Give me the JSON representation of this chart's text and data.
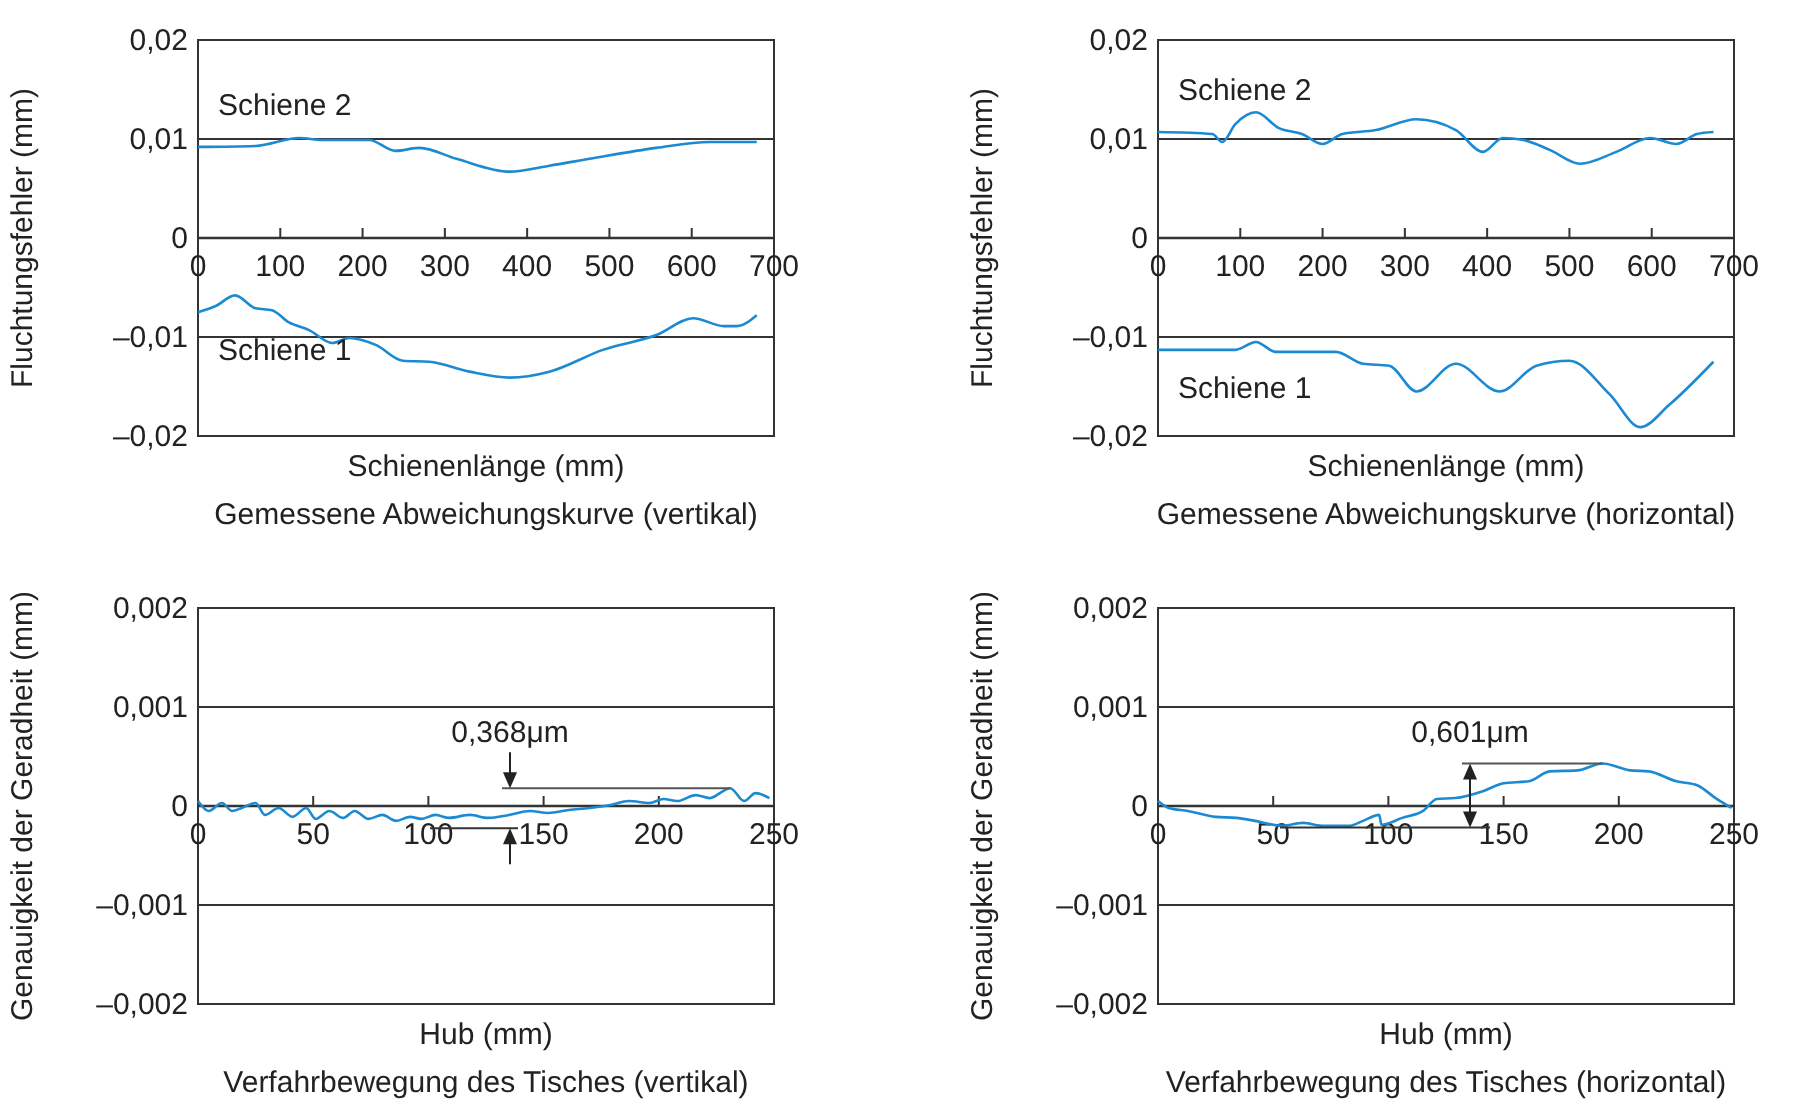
{
  "chart_data": [
    {
      "type": "line",
      "title": "Gemessene Abweichungskurve (vertikal)",
      "xlabel": "Schienenlänge (mm)",
      "ylabel": "Fluchtungsfehler (mm)",
      "xlim": [
        0,
        700
      ],
      "xticks": [
        0,
        100,
        200,
        300,
        400,
        500,
        600,
        700
      ],
      "ylim": [
        -0.02,
        0.02
      ],
      "yticks": [
        {
          "value": -0.02,
          "label": "–0,02"
        },
        {
          "value": -0.01,
          "label": "–0,01"
        },
        {
          "value": 0,
          "label": "0"
        },
        {
          "value": 0.01,
          "label": "0,01"
        },
        {
          "value": 0.02,
          "label": "0,02"
        }
      ],
      "grid": "y",
      "line_style": "solid",
      "series": [
        {
          "name": "Schiene 2",
          "color": "#1b8ad3",
          "x": [
            0,
            70,
            123,
            151,
            208,
            240,
            269,
            314,
            379,
            427,
            476,
            557,
            622,
            679
          ],
          "values": [
            0.0092,
            0.0093,
            0.0101,
            0.0099,
            0.0099,
            0.0088,
            0.0091,
            0.008,
            0.0067,
            0.0073,
            0.008,
            0.0091,
            0.0097,
            0.0097
          ]
        },
        {
          "name": "Schiene 1",
          "color": "#1b8ad3",
          "x": [
            0,
            21,
            45,
            70,
            90,
            110,
            135,
            163,
            184,
            216,
            249,
            281,
            330,
            379,
            427,
            492,
            557,
            602,
            639,
            655,
            679
          ],
          "values": [
            -0.0075,
            -0.0069,
            -0.0058,
            -0.0071,
            -0.0073,
            -0.0085,
            -0.0093,
            -0.0106,
            -0.0101,
            -0.0108,
            -0.0124,
            -0.0125,
            -0.0135,
            -0.0141,
            -0.0135,
            -0.0113,
            -0.0098,
            -0.0081,
            -0.0089,
            -0.0089,
            -0.0078
          ]
        }
      ]
    },
    {
      "type": "line",
      "title": "Gemessene Abweichungskurve (horizontal)",
      "xlabel": "Schienenlänge (mm)",
      "ylabel": "Fluchtungsfehler (mm)",
      "xlim": [
        0,
        700
      ],
      "xticks": [
        0,
        100,
        200,
        300,
        400,
        500,
        600,
        700
      ],
      "ylim": [
        -0.02,
        0.02
      ],
      "yticks": [
        {
          "value": -0.02,
          "label": "–0,02"
        },
        {
          "value": -0.01,
          "label": "–0,01"
        },
        {
          "value": 0,
          "label": "0"
        },
        {
          "value": 0.01,
          "label": "0,01"
        },
        {
          "value": 0.02,
          "label": "0,02"
        }
      ],
      "grid": "y",
      "line_style": "solid",
      "series": [
        {
          "name": "Schiene 2",
          "color": "#1b8ad3",
          "x": [
            0,
            66,
            78,
            94,
            119,
            147,
            175,
            200,
            224,
            265,
            314,
            362,
            395,
            419,
            444,
            476,
            513,
            557,
            598,
            630,
            655,
            675
          ],
          "values": [
            0.0107,
            0.0105,
            0.0097,
            0.0115,
            0.0127,
            0.0111,
            0.0105,
            0.0095,
            0.0105,
            0.0109,
            0.012,
            0.0109,
            0.0087,
            0.0101,
            0.0099,
            0.0089,
            0.0075,
            0.0087,
            0.0101,
            0.0095,
            0.0105,
            0.0107
          ]
        },
        {
          "name": "Schiene 1",
          "color": "#1b8ad3",
          "x": [
            0,
            94,
            119,
            143,
            216,
            249,
            281,
            314,
            362,
            415,
            460,
            500,
            549,
            586,
            622,
            675
          ],
          "values": [
            -0.0113,
            -0.0113,
            -0.0105,
            -0.0115,
            -0.0115,
            -0.0127,
            -0.0129,
            -0.0155,
            -0.0127,
            -0.0155,
            -0.0129,
            -0.0124,
            -0.0158,
            -0.0191,
            -0.0168,
            -0.0125
          ]
        }
      ]
    },
    {
      "type": "line",
      "title": "Verfahrbewegung des Tisches (vertikal)",
      "xlabel": "Hub (mm)",
      "ylabel": "Genauigkeit der Geradheit (mm)",
      "xlim": [
        0,
        250
      ],
      "xticks": [
        0,
        50,
        100,
        150,
        200,
        250
      ],
      "ylim": [
        -0.002,
        0.002
      ],
      "yticks": [
        {
          "value": -0.002,
          "label": "–0,002"
        },
        {
          "value": -0.001,
          "label": "–0,001"
        },
        {
          "value": 0,
          "label": "0"
        },
        {
          "value": 0.001,
          "label": "0,001"
        },
        {
          "value": 0.002,
          "label": "0,002"
        }
      ],
      "grid": "y",
      "line_style": "solid",
      "annotations": [
        {
          "text": "0,368μm",
          "x": 231,
          "y": 0.00018
        }
      ],
      "series": [
        {
          "color": "#1b8ad3",
          "x": [
            0,
            4.6,
            10.4,
            14.8,
            19,
            25,
            29,
            35,
            41,
            47,
            51,
            57,
            63,
            68,
            74,
            80,
            86,
            92,
            97,
            103,
            109,
            118,
            126,
            135,
            144,
            152,
            161,
            170,
            179,
            187,
            196,
            202,
            208,
            216,
            222,
            231,
            237,
            242,
            248
          ],
          "values": [
            5e-05,
            -5e-05,
            3e-05,
            -5e-05,
            -2e-05,
            3e-05,
            -9e-05,
            -2e-05,
            -0.00011,
            -2e-05,
            -0.00013,
            -5e-05,
            -0.00012,
            -5e-05,
            -0.00013,
            -9e-05,
            -0.00015,
            -0.00011,
            -0.00013,
            -9e-05,
            -0.00012,
            -9e-05,
            -0.00012,
            -9e-05,
            -5e-05,
            -7e-05,
            -4e-05,
            -2e-05,
            1e-05,
            5e-05,
            3e-05,
            7e-05,
            5e-05,
            0.00011,
            8e-05,
            0.00018,
            5e-05,
            0.00013,
            8e-05
          ]
        }
      ]
    },
    {
      "type": "line",
      "title": "Verfahrbewegung des Tisches (horizontal)",
      "xlabel": "Hub (mm)",
      "ylabel": "Genauigkeit der Geradheit (mm)",
      "xlim": [
        0,
        250
      ],
      "xticks": [
        0,
        50,
        100,
        150,
        200,
        250
      ],
      "ylim": [
        -0.002,
        0.002
      ],
      "yticks": [
        {
          "value": -0.002,
          "label": "–0,002"
        },
        {
          "value": -0.001,
          "label": "–0,001"
        },
        {
          "value": 0,
          "label": "0"
        },
        {
          "value": 0.001,
          "label": "0,001"
        },
        {
          "value": 0.002,
          "label": "0,002"
        }
      ],
      "grid": "y",
      "line_style": "solid",
      "annotations": [
        {
          "text": "0,601μm",
          "x": 193,
          "y": 0.00043
        }
      ],
      "series": [
        {
          "color": "#1b8ad3",
          "x": [
            0,
            4.6,
            13,
            25,
            34,
            42,
            54,
            63,
            71,
            83,
            89,
            96,
            97,
            106,
            115,
            121,
            129,
            141,
            150,
            161,
            170,
            182,
            193,
            205,
            213,
            225,
            234,
            242,
            249
          ],
          "values": [
            5e-05,
            -2e-05,
            -5e-05,
            -0.00011,
            -0.00012,
            -0.00015,
            -0.0002,
            -0.00017,
            -0.0002,
            -0.0002,
            -0.00015,
            -9e-05,
            -0.00019,
            -0.00012,
            -5e-05,
            7e-05,
            8e-05,
            0.00015,
            0.00023,
            0.00025,
            0.00035,
            0.00036,
            0.00043,
            0.00036,
            0.00035,
            0.00025,
            0.00021,
            8e-05,
            -2e-05
          ]
        }
      ]
    }
  ]
}
